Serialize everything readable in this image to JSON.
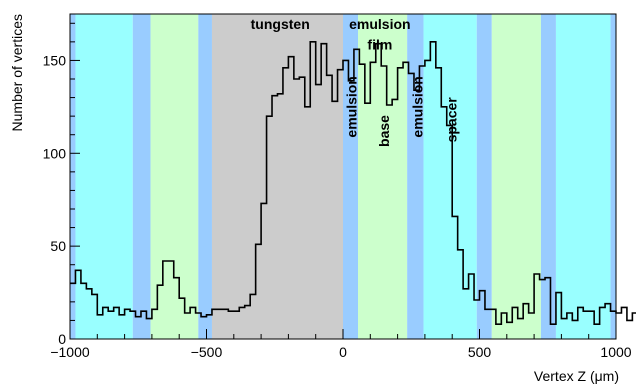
{
  "chart_data": {
    "type": "histogram",
    "title": "",
    "xlabel": "Vertex Z (μm)",
    "ylabel": "Number of vertices",
    "xlim": [
      -1000,
      1000
    ],
    "ylim": [
      0,
      175
    ],
    "xticks": [
      -1000,
      -500,
      0,
      500,
      1000
    ],
    "xtick_labels": [
      "−1000",
      "−500",
      "0",
      "500",
      "1000"
    ],
    "yticks": [
      0,
      50,
      100,
      150
    ],
    "bins": {
      "start": -1000,
      "width": 20,
      "counts": [
        30,
        37,
        30,
        27,
        24,
        13,
        17,
        15,
        17,
        13,
        16,
        15,
        12,
        15,
        11,
        16,
        29,
        42,
        42,
        33,
        22,
        14,
        17,
        14,
        12,
        13,
        16,
        16,
        16,
        15,
        15,
        17,
        18,
        24,
        51,
        73,
        120,
        131,
        132,
        146,
        152,
        140,
        141,
        125,
        160,
        137,
        159,
        142,
        128,
        145,
        150,
        139,
        156,
        148,
        127,
        149,
        159,
        147,
        126,
        129,
        146,
        149,
        143,
        134,
        147,
        150,
        160,
        146,
        125,
        115,
        66,
        48,
        27,
        35,
        21,
        26,
        16,
        16,
        8,
        14,
        9,
        17,
        11,
        19,
        14,
        35,
        32,
        33,
        8,
        25,
        11,
        14,
        10,
        17,
        15,
        15,
        8,
        17,
        19,
        15,
        14,
        17,
        10,
        14,
        15,
        10,
        29,
        32,
        15,
        13,
        11,
        19,
        14,
        16,
        34,
        38,
        32,
        30,
        20,
        28,
        11,
        15,
        18,
        18,
        22,
        22,
        15,
        19,
        12,
        17,
        7,
        18,
        18,
        13,
        21,
        13,
        15,
        18,
        14,
        13,
        10,
        18,
        11,
        18,
        20,
        17,
        15,
        11,
        19,
        20,
        11,
        14,
        20,
        12,
        18,
        13,
        18,
        11,
        15,
        20,
        14,
        17,
        14,
        10,
        14,
        16,
        18,
        15,
        9,
        14,
        19,
        13,
        21,
        12,
        19,
        17,
        14,
        14,
        14,
        19,
        17,
        14,
        20,
        11,
        17,
        16,
        19,
        16,
        19,
        18,
        12,
        19,
        10,
        13,
        17,
        16,
        15,
        15,
        15,
        18
      ]
    },
    "regions": [
      {
        "name": "emulsion",
        "from": -1000,
        "to": -980,
        "color": "#99ccff"
      },
      {
        "name": "spacer",
        "from": -980,
        "to": -770,
        "color": "#99ffff"
      },
      {
        "name": "emulsion",
        "from": -770,
        "to": -705,
        "color": "#99ccff"
      },
      {
        "name": "base",
        "from": -705,
        "to": -530,
        "color": "#ccffcc"
      },
      {
        "name": "emulsion",
        "from": -530,
        "to": -480,
        "color": "#99ccff"
      },
      {
        "name": "tungsten",
        "from": -480,
        "to": 0,
        "color": "#cccccc"
      },
      {
        "name": "emulsion",
        "from": 0,
        "to": 55,
        "color": "#99ccff"
      },
      {
        "name": "base",
        "from": 55,
        "to": 235,
        "color": "#ccffcc"
      },
      {
        "name": "emulsion",
        "from": 235,
        "to": 295,
        "color": "#99ccff"
      },
      {
        "name": "spacer",
        "from": 295,
        "to": 490,
        "color": "#99ffff"
      },
      {
        "name": "emulsion",
        "from": 490,
        "to": 545,
        "color": "#99ccff"
      },
      {
        "name": "base",
        "from": 545,
        "to": 725,
        "color": "#ccffcc"
      },
      {
        "name": "emulsion",
        "from": 725,
        "to": 780,
        "color": "#99ccff"
      },
      {
        "name": "spacer",
        "from": 780,
        "to": 980,
        "color": "#99ffff"
      },
      {
        "name": "emulsion",
        "from": 980,
        "to": 1000,
        "color": "#99ccff"
      }
    ],
    "annotations": [
      {
        "text": "tungsten",
        "x": -230,
        "y": 167,
        "rotate": false
      },
      {
        "text": "emulsion",
        "x": 135,
        "y": 167,
        "rotate": false
      },
      {
        "text": "film",
        "x": 135,
        "y": 156,
        "rotate": false
      },
      {
        "text": "emulsion",
        "x": 32,
        "y": 125,
        "rotate": true
      },
      {
        "text": "base",
        "x": 150,
        "y": 112,
        "rotate": true
      },
      {
        "text": "emulsion",
        "x": 272,
        "y": 125,
        "rotate": true
      },
      {
        "text": "spacer",
        "x": 398,
        "y": 118,
        "rotate": true
      }
    ],
    "line_color": "#000000",
    "grid": false
  }
}
